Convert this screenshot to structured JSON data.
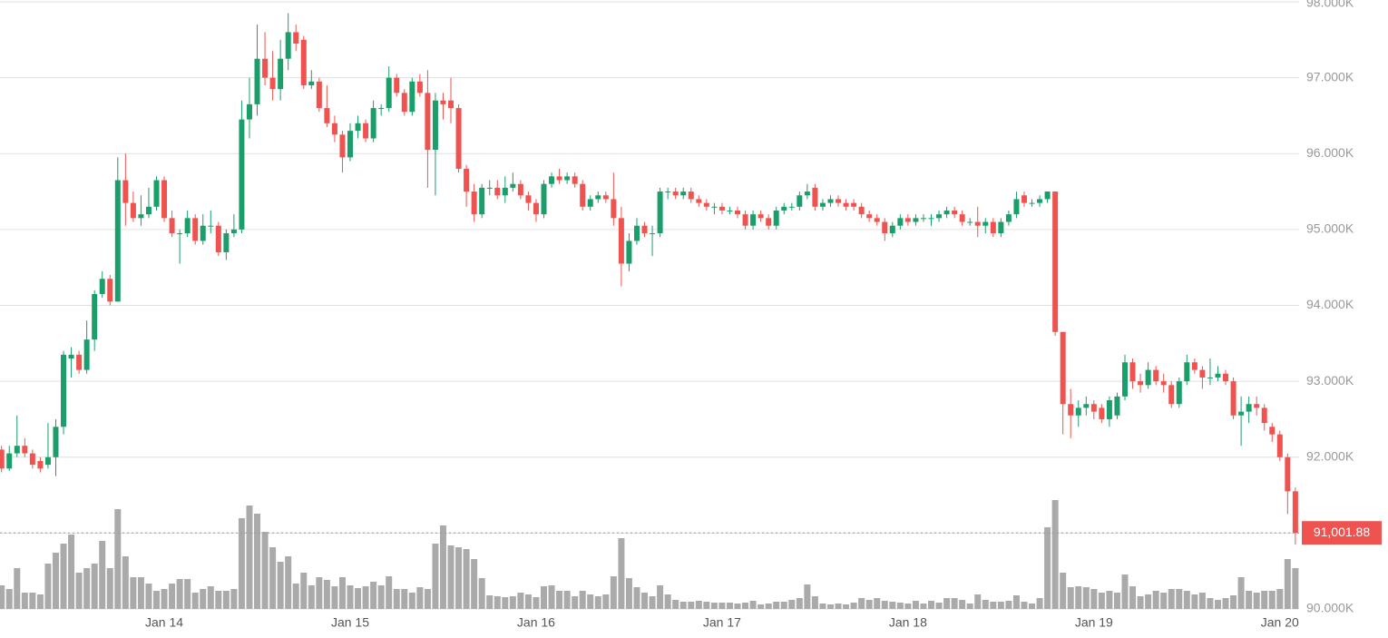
{
  "chart_data": {
    "type": "candlestick",
    "categories": [
      null,
      null,
      null,
      null,
      null,
      null,
      null,
      null,
      null,
      null,
      null,
      null,
      null,
      null,
      null,
      null,
      null,
      null,
      null,
      null,
      null,
      "Jan 14",
      null,
      null,
      null,
      null,
      null,
      null,
      null,
      null,
      null,
      null,
      null,
      null,
      null,
      null,
      null,
      null,
      null,
      null,
      null,
      null,
      null,
      null,
      null,
      "Jan 15",
      null,
      null,
      null,
      null,
      null,
      null,
      null,
      null,
      null,
      null,
      null,
      null,
      null,
      null,
      null,
      null,
      null,
      null,
      null,
      null,
      null,
      null,
      null,
      "Jan 16",
      null,
      null,
      null,
      null,
      null,
      null,
      null,
      null,
      null,
      null,
      null,
      null,
      null,
      null,
      null,
      null,
      null,
      null,
      null,
      null,
      null,
      null,
      null,
      "Jan 17",
      null,
      null,
      null,
      null,
      null,
      null,
      null,
      null,
      null,
      null,
      null,
      null,
      null,
      null,
      null,
      null,
      null,
      null,
      null,
      null,
      null,
      null,
      null,
      "Jan 18",
      null,
      null,
      null,
      null,
      null,
      null,
      null,
      null,
      null,
      null,
      null,
      null,
      null,
      null,
      null,
      null,
      null,
      null,
      null,
      null,
      null,
      null,
      null,
      "Jan 19",
      null,
      null,
      null,
      null,
      null,
      null,
      null,
      null,
      null,
      null,
      null,
      null,
      null,
      null,
      null,
      null,
      null,
      null,
      null,
      null,
      null,
      null,
      null,
      "Jan 20",
      null,
      null
    ],
    "ohlc": [
      [
        92100,
        92150,
        91800,
        91850
      ],
      [
        91850,
        92150,
        91820,
        92050
      ],
      [
        92050,
        92550,
        92000,
        92150
      ],
      [
        92150,
        92250,
        92000,
        92050
      ],
      [
        92050,
        92100,
        91850,
        91900
      ],
      [
        91950,
        92000,
        91800,
        91850
      ],
      [
        91900,
        92450,
        91850,
        92000
      ],
      [
        92000,
        92500,
        91750,
        92400
      ],
      [
        92400,
        93400,
        92300,
        93350
      ],
      [
        93300,
        93450,
        93050,
        93350
      ],
      [
        93350,
        93400,
        93100,
        93150
      ],
      [
        93150,
        93800,
        93100,
        93550
      ],
      [
        93550,
        94200,
        93400,
        94150
      ],
      [
        94150,
        94450,
        94100,
        94350
      ],
      [
        94350,
        94400,
        94000,
        94050
      ],
      [
        94050,
        95950,
        94050,
        95650
      ],
      [
        95650,
        96000,
        95050,
        95350
      ],
      [
        95350,
        95500,
        95100,
        95150
      ],
      [
        95150,
        95450,
        95050,
        95200
      ],
      [
        95200,
        95550,
        95150,
        95300
      ],
      [
        95300,
        95700,
        95250,
        95650
      ],
      [
        95650,
        95700,
        95100,
        95150
      ],
      [
        95150,
        95250,
        94900,
        94950
      ],
      [
        94950,
        95000,
        94550,
        94950
      ],
      [
        94950,
        95250,
        94900,
        95150
      ],
      [
        95150,
        95200,
        94800,
        94850
      ],
      [
        94850,
        95200,
        94800,
        95050
      ],
      [
        95050,
        95250,
        94950,
        95050
      ],
      [
        95050,
        95100,
        94650,
        94700
      ],
      [
        94700,
        95000,
        94600,
        94950
      ],
      [
        94950,
        95200,
        94900,
        95000
      ],
      [
        95000,
        96700,
        94950,
        96450
      ],
      [
        96450,
        97000,
        96200,
        96650
      ],
      [
        96650,
        97700,
        96500,
        97250
      ],
      [
        97250,
        97600,
        96900,
        97000
      ],
      [
        97000,
        97350,
        96700,
        96850
      ],
      [
        96850,
        97500,
        96700,
        97250
      ],
      [
        97250,
        97850,
        97100,
        97600
      ],
      [
        97600,
        97700,
        97350,
        97450
      ],
      [
        97500,
        97550,
        96850,
        96900
      ],
      [
        96900,
        97100,
        96850,
        96950
      ],
      [
        96950,
        97000,
        96550,
        96600
      ],
      [
        96600,
        96900,
        96350,
        96400
      ],
      [
        96400,
        96500,
        96150,
        96250
      ],
      [
        96250,
        96300,
        95750,
        95950
      ],
      [
        95950,
        96400,
        95900,
        96300
      ],
      [
        96300,
        96500,
        96200,
        96400
      ],
      [
        96400,
        96450,
        96150,
        96200
      ],
      [
        96200,
        96700,
        96150,
        96600
      ],
      [
        96600,
        96650,
        96500,
        96600
      ],
      [
        96600,
        97150,
        96550,
        97000
      ],
      [
        97000,
        97050,
        96750,
        96800
      ],
      [
        96800,
        96850,
        96500,
        96550
      ],
      [
        96550,
        97000,
        96500,
        96950
      ],
      [
        96950,
        97050,
        96750,
        96800
      ],
      [
        96800,
        97100,
        95550,
        96050
      ],
      [
        96050,
        96800,
        95450,
        96700
      ],
      [
        96700,
        96800,
        96450,
        96650
      ],
      [
        96700,
        97000,
        96400,
        96600
      ],
      [
        96600,
        96650,
        95750,
        95800
      ],
      [
        95800,
        95850,
        95300,
        95500
      ],
      [
        95500,
        95600,
        95100,
        95200
      ],
      [
        95200,
        95600,
        95150,
        95550
      ],
      [
        95550,
        95650,
        95450,
        95550
      ],
      [
        95550,
        95650,
        95400,
        95450
      ],
      [
        95450,
        95700,
        95350,
        95550
      ],
      [
        95550,
        95750,
        95500,
        95600
      ],
      [
        95600,
        95650,
        95400,
        95450
      ],
      [
        95450,
        95500,
        95250,
        95350
      ],
      [
        95350,
        95400,
        95100,
        95200
      ],
      [
        95200,
        95650,
        95150,
        95600
      ],
      [
        95600,
        95750,
        95550,
        95700
      ],
      [
        95700,
        95800,
        95600,
        95650
      ],
      [
        95650,
        95750,
        95600,
        95700
      ],
      [
        95700,
        95750,
        95550,
        95600
      ],
      [
        95600,
        95650,
        95250,
        95300
      ],
      [
        95300,
        95450,
        95250,
        95400
      ],
      [
        95400,
        95500,
        95350,
        95450
      ],
      [
        95450,
        95500,
        95350,
        95400
      ],
      [
        95400,
        95750,
        95050,
        95150
      ],
      [
        95150,
        95300,
        94250,
        94550
      ],
      [
        94550,
        94950,
        94450,
        94850
      ],
      [
        94850,
        95150,
        94800,
        95050
      ],
      [
        95050,
        95100,
        94900,
        94950
      ],
      [
        94950,
        95050,
        94650,
        94950
      ],
      [
        94950,
        95550,
        94900,
        95500
      ],
      [
        95500,
        95550,
        95400,
        95500
      ],
      [
        95500,
        95550,
        95400,
        95450
      ],
      [
        95450,
        95550,
        95400,
        95500
      ],
      [
        95500,
        95550,
        95350,
        95400
      ],
      [
        95400,
        95450,
        95300,
        95350
      ],
      [
        95350,
        95400,
        95250,
        95300
      ],
      [
        95300,
        95350,
        95200,
        95300
      ],
      [
        95300,
        95350,
        95200,
        95250
      ],
      [
        95250,
        95300,
        95200,
        95250
      ],
      [
        95250,
        95300,
        95150,
        95200
      ],
      [
        95200,
        95250,
        95000,
        95050
      ],
      [
        95050,
        95250,
        95000,
        95200
      ],
      [
        95200,
        95250,
        95100,
        95150
      ],
      [
        95150,
        95200,
        95000,
        95050
      ],
      [
        95050,
        95300,
        95000,
        95250
      ],
      [
        95250,
        95350,
        95200,
        95300
      ],
      [
        95300,
        95350,
        95250,
        95300
      ],
      [
        95300,
        95500,
        95250,
        95450
      ],
      [
        95450,
        95600,
        95400,
        95500
      ],
      [
        95550,
        95600,
        95250,
        95300
      ],
      [
        95300,
        95400,
        95250,
        95350
      ],
      [
        95350,
        95450,
        95300,
        95400
      ],
      [
        95400,
        95450,
        95300,
        95350
      ],
      [
        95350,
        95400,
        95250,
        95300
      ],
      [
        95350,
        95400,
        95250,
        95300
      ],
      [
        95300,
        95350,
        95150,
        95200
      ],
      [
        95200,
        95250,
        95100,
        95150
      ],
      [
        95150,
        95200,
        95050,
        95100
      ],
      [
        95100,
        95150,
        94850,
        94950
      ],
      [
        94950,
        95100,
        94900,
        95050
      ],
      [
        95050,
        95200,
        95000,
        95150
      ],
      [
        95150,
        95200,
        95050,
        95100
      ],
      [
        95100,
        95200,
        95050,
        95150
      ],
      [
        95150,
        95200,
        95100,
        95150
      ],
      [
        95150,
        95200,
        95050,
        95150
      ],
      [
        95150,
        95250,
        95100,
        95200
      ],
      [
        95200,
        95300,
        95150,
        95250
      ],
      [
        95250,
        95300,
        95150,
        95200
      ],
      [
        95200,
        95250,
        95050,
        95100
      ],
      [
        95100,
        95150,
        95050,
        95100
      ],
      [
        95100,
        95300,
        94900,
        95050
      ],
      [
        95050,
        95150,
        94950,
        95100
      ],
      [
        95100,
        95150,
        94900,
        94950
      ],
      [
        94950,
        95150,
        94900,
        95100
      ],
      [
        95100,
        95250,
        95050,
        95200
      ],
      [
        95200,
        95500,
        95150,
        95400
      ],
      [
        95450,
        95500,
        95300,
        95350
      ],
      [
        95350,
        95400,
        95300,
        95350
      ],
      [
        95350,
        95450,
        95300,
        95400
      ],
      [
        95400,
        95500,
        95350,
        95500
      ],
      [
        95500,
        95500,
        93600,
        93650
      ],
      [
        93650,
        93650,
        92300,
        92700
      ],
      [
        92700,
        92900,
        92250,
        92550
      ],
      [
        92550,
        92750,
        92400,
        92650
      ],
      [
        92650,
        92800,
        92550,
        92700
      ],
      [
        92700,
        92750,
        92500,
        92600
      ],
      [
        92650,
        92700,
        92450,
        92500
      ],
      [
        92500,
        92800,
        92400,
        92750
      ],
      [
        92550,
        92850,
        92500,
        92800
      ],
      [
        92800,
        93350,
        92750,
        93250
      ],
      [
        93250,
        93300,
        92900,
        93000
      ],
      [
        93000,
        93100,
        92850,
        92950
      ],
      [
        92950,
        93250,
        92900,
        93150
      ],
      [
        93150,
        93200,
        92950,
        93000
      ],
      [
        93000,
        93100,
        92850,
        92950
      ],
      [
        92950,
        93000,
        92650,
        92700
      ],
      [
        92700,
        93050,
        92650,
        93000
      ],
      [
        93000,
        93350,
        92950,
        93250
      ],
      [
        93250,
        93300,
        93100,
        93150
      ],
      [
        93150,
        93200,
        92900,
        93050
      ],
      [
        93050,
        93300,
        92950,
        93050
      ],
      [
        93050,
        93200,
        93000,
        93100
      ],
      [
        93100,
        93150,
        92950,
        93000
      ],
      [
        93000,
        93050,
        92500,
        92550
      ],
      [
        92550,
        92800,
        92150,
        92600
      ],
      [
        92600,
        92800,
        92450,
        92700
      ],
      [
        92700,
        92800,
        92550,
        92650
      ],
      [
        92650,
        92700,
        92350,
        92450
      ],
      [
        92400,
        92450,
        92200,
        92300
      ],
      [
        92300,
        92350,
        91950,
        92000
      ],
      [
        92000,
        92050,
        91250,
        91550
      ],
      [
        91550,
        91600,
        90850,
        91001.88
      ]
    ],
    "volume": [
      26,
      22,
      45,
      18,
      18,
      16,
      50,
      62,
      72,
      82,
      40,
      45,
      50,
      75,
      45,
      110,
      58,
      35,
      35,
      28,
      20,
      22,
      28,
      33,
      33,
      18,
      22,
      25,
      20,
      20,
      22,
      100,
      114,
      105,
      85,
      68,
      52,
      58,
      28,
      40,
      26,
      35,
      32,
      25,
      35,
      26,
      23,
      25,
      30,
      26,
      36,
      22,
      22,
      18,
      24,
      22,
      72,
      92,
      70,
      68,
      66,
      55,
      34,
      15,
      14,
      13,
      14,
      18,
      16,
      13,
      25,
      26,
      20,
      20,
      14,
      20,
      16,
      14,
      16,
      36,
      78,
      34,
      24,
      18,
      14,
      26,
      16,
      10,
      8,
      8,
      9,
      8,
      7,
      7,
      7,
      6,
      7,
      9,
      5,
      6,
      8,
      8,
      10,
      12,
      27,
      14,
      6,
      5,
      6,
      5,
      7,
      12,
      10,
      12,
      9,
      8,
      7,
      6,
      9,
      6,
      9,
      7,
      12,
      12,
      10,
      6,
      16,
      10,
      8,
      8,
      9,
      15,
      8,
      6,
      12,
      90,
      120,
      40,
      24,
      25,
      24,
      22,
      18,
      20,
      18,
      38,
      25,
      14,
      16,
      20,
      18,
      22,
      22,
      20,
      16,
      18,
      12,
      10,
      12,
      15,
      35,
      20,
      18,
      20,
      20,
      22,
      55,
      45
    ],
    "up_color": "#1a9e6a",
    "down_color": "#ef5350",
    "volume_color": "#aaaaaa",
    "ylim": [
      90000,
      98000
    ],
    "yticks": [
      {
        "value": 90000,
        "label": "90.000K"
      },
      {
        "value": 91000,
        "label": "91.000K"
      },
      {
        "value": 92000,
        "label": "92.000K"
      },
      {
        "value": 93000,
        "label": "93.000K"
      },
      {
        "value": 94000,
        "label": "94.000K"
      },
      {
        "value": 95000,
        "label": "95.000K"
      },
      {
        "value": 96000,
        "label": "96.000K"
      },
      {
        "value": 97000,
        "label": "97.000K"
      },
      {
        "value": 98000,
        "label": "98.000K"
      }
    ],
    "grid": true,
    "last_price": {
      "value": 91001.88,
      "label": "91,001.88"
    }
  }
}
